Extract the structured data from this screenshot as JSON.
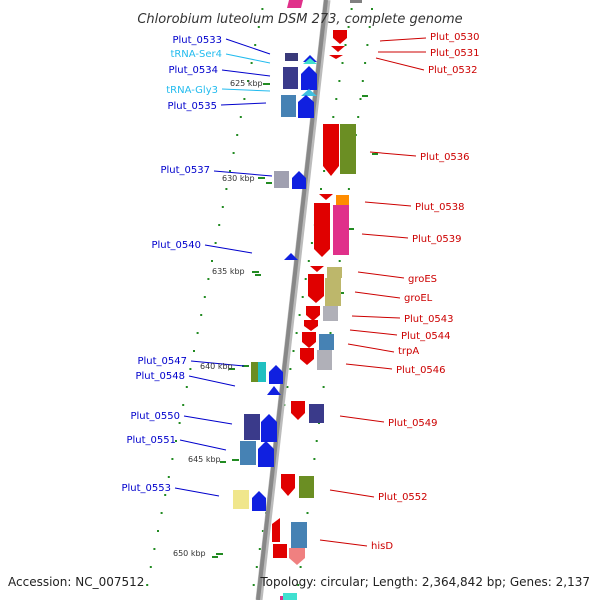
{
  "title": "Chlorobium luteolum DSM 273, complete genome",
  "footer": {
    "accession": "Accession: NC_007512",
    "topology": "Topology: circular; Length: 2,364,842 bp; Genes: 2,137"
  },
  "colors": {
    "left_label": "#0000cc",
    "right_label": "#cc0000",
    "trna_label": "#22bbee",
    "backbone": "#888888",
    "tick": "#228b22"
  },
  "kbp_markers": [
    "625 kbp",
    "630 kbp",
    "635 kbp",
    "640 kbp",
    "645 kbp",
    "650 kbp"
  ],
  "left_labels": [
    "Plut_0533",
    "tRNA-Ser4",
    "Plut_0534",
    "tRNA-Gly3",
    "Plut_0535",
    "Plut_0537",
    "Plut_0540",
    "Plut_0547",
    "Plut_0548",
    "Plut_0550",
    "Plut_0551",
    "Plut_0553"
  ],
  "right_labels": [
    "Plut_0530",
    "Plut_0531",
    "Plut_0532",
    "Plut_0536",
    "Plut_0538",
    "Plut_0539",
    "groES",
    "groEL",
    "Plut_0543",
    "Plut_0544",
    "trpA",
    "Plut_0546",
    "Plut_0549",
    "Plut_0552",
    "hisD"
  ]
}
